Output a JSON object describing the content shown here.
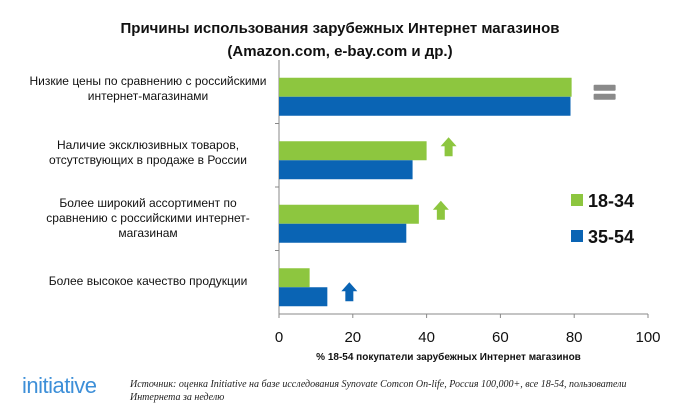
{
  "chart_data": {
    "type": "bar",
    "orientation": "horizontal",
    "title": "Причины использования зарубежных Интернет магазинов",
    "subtitle": "(Amazon.com, e-bay.com и др.)",
    "categories": [
      "Низкие цены по сравнению с российскими интернет-магазинами",
      "Наличие эксклюзивных товаров, отсутствующих в продаже в России",
      "Более широкий ассортимент по сравнению с российскими интернет-магазинам",
      "Более высокое качество продукции"
    ],
    "series": [
      {
        "name": "18-34",
        "color": "#8dc63f",
        "values": [
          79.3,
          40,
          37.9,
          8.3
        ]
      },
      {
        "name": "35-54",
        "color": "#0a64b4",
        "values": [
          79,
          36.2,
          34.5,
          13.1
        ]
      }
    ],
    "trend_markers": [
      "equal",
      "up-green",
      "up-green",
      "up-blue"
    ],
    "xlabel": "% 18-54 покупатели зарубежных Интернет магазинов",
    "xlim": [
      0,
      100
    ],
    "xticks": [
      "0",
      "20",
      "40",
      "60",
      "80",
      "100"
    ],
    "legend": "right",
    "grid": false
  },
  "footer": {
    "logo": "initiative",
    "source": "Источник: оценка Initiative на базе исследования Synovate Comcon  On-life, Россия 100,000+, все 18-54, пользователи Интернета за неделю"
  }
}
